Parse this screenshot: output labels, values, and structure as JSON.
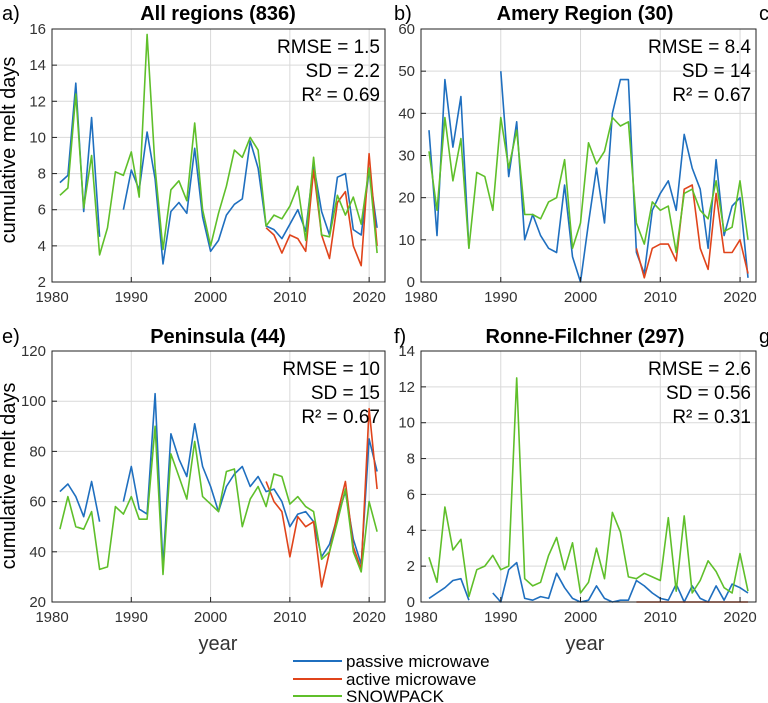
{
  "colors": {
    "passive": "#1f6fbf",
    "active": "#e0441b",
    "snowpack": "#5fbf2a",
    "axis": "#222222",
    "grid": "#d9d9d9"
  },
  "legend": {
    "entries": [
      "passive microwave",
      "active microwave",
      "SNOWPACK"
    ]
  },
  "chart_data": [
    {
      "type": "line",
      "panel_label": "a)",
      "title": "All regions (836)",
      "ylabel": "cumulative melt days",
      "xlabel": "",
      "xlim": [
        1980,
        2022
      ],
      "ylim": [
        2,
        16
      ],
      "xticks": [
        1980,
        1990,
        2000,
        2010,
        2020
      ],
      "yticks": [
        2,
        4,
        6,
        8,
        10,
        12,
        14,
        16
      ],
      "stats": [
        "RMSE = 1.5",
        "SD = 2.2",
        "R² = 0.69"
      ],
      "series": [
        {
          "name": "passive microwave",
          "color_key": "passive",
          "x": [
            1981,
            1982,
            1983,
            1984,
            1985,
            1986,
            null,
            1989,
            1990,
            1991,
            1992,
            1993,
            1994,
            1995,
            1996,
            1997,
            1998,
            1999,
            2000,
            2001,
            2002,
            2003,
            2004,
            2005,
            2006,
            2007,
            2008,
            2009,
            2010,
            2011,
            2012,
            2013,
            2014,
            2015,
            2016,
            2017,
            2018,
            2019,
            2020,
            2021
          ],
          "values": [
            7.5,
            7.9,
            13.0,
            5.9,
            11.1,
            4.5,
            null,
            6.0,
            8.2,
            7.1,
            10.3,
            7.7,
            3.0,
            5.9,
            6.4,
            5.8,
            9.4,
            5.6,
            3.7,
            4.3,
            5.7,
            6.3,
            6.6,
            9.8,
            8.3,
            5.1,
            4.9,
            4.4,
            5.2,
            6.0,
            4.8,
            8.5,
            5.9,
            4.6,
            7.8,
            8.0,
            4.9,
            4.6,
            8.2,
            5.0
          ]
        },
        {
          "name": "active microwave",
          "color_key": "active",
          "x": [
            2007,
            2008,
            2009,
            2010,
            2011,
            2012,
            2013,
            2014,
            2015,
            2016,
            2017,
            2018,
            2019,
            2020,
            2021
          ],
          "values": [
            5.0,
            4.6,
            3.6,
            4.6,
            4.4,
            3.7,
            8.2,
            4.6,
            3.3,
            6.4,
            7.0,
            4.0,
            2.9,
            9.1,
            4.0
          ]
        },
        {
          "name": "SNOWPACK",
          "color_key": "snowpack",
          "x": [
            1981,
            1982,
            1983,
            1984,
            1985,
            1986,
            1987,
            1988,
            1989,
            1990,
            1991,
            1992,
            1993,
            1994,
            1995,
            1996,
            1997,
            1998,
            1999,
            2000,
            2001,
            2002,
            2003,
            2004,
            2005,
            2006,
            2007,
            2008,
            2009,
            2010,
            2011,
            2012,
            2013,
            2014,
            2015,
            2016,
            2017,
            2018,
            2019,
            2020,
            2021
          ],
          "values": [
            6.8,
            7.2,
            12.4,
            6.1,
            9.0,
            3.5,
            5.0,
            8.1,
            7.9,
            9.2,
            6.7,
            15.7,
            8.3,
            3.8,
            7.1,
            7.6,
            6.5,
            10.8,
            6.0,
            4.0,
            5.8,
            7.3,
            9.3,
            8.9,
            10.0,
            9.3,
            5.1,
            5.7,
            5.5,
            6.2,
            7.3,
            4.3,
            8.9,
            4.6,
            4.5,
            6.8,
            5.7,
            6.7,
            5.2,
            8.3,
            3.6
          ]
        }
      ]
    },
    {
      "type": "line",
      "panel_label": "b)",
      "title": "Amery Region (30)",
      "ylabel": "",
      "xlabel": "",
      "xlim": [
        1980,
        2022
      ],
      "ylim": [
        0,
        60
      ],
      "xticks": [
        1980,
        1990,
        2000,
        2010,
        2020
      ],
      "yticks": [
        0,
        10,
        20,
        30,
        40,
        50,
        60
      ],
      "stats": [
        "RMSE = 8.4",
        "SD = 14",
        "R² = 0.67"
      ],
      "series": [
        {
          "name": "passive microwave",
          "color_key": "passive",
          "x": [
            1981,
            1982,
            1983,
            1984,
            1985,
            1986,
            1987,
            1988,
            1989,
            1990,
            1991,
            1992,
            1993,
            1994,
            1995,
            1996,
            1997,
            1998,
            1999,
            2000,
            2001,
            2002,
            2003,
            2004,
            2005,
            2006,
            2007,
            2008,
            2009,
            2010,
            2011,
            2012,
            2013,
            2014,
            2015,
            2016,
            2017,
            2018,
            2019,
            2020,
            2021
          ],
          "values": [
            36,
            11,
            48,
            32,
            44,
            8,
            null,
            null,
            null,
            50,
            25,
            38,
            10,
            16,
            11,
            8,
            7,
            23,
            6,
            0,
            14,
            27,
            14,
            40,
            48,
            48,
            7,
            2,
            17,
            21,
            24,
            17,
            35,
            27,
            22,
            8,
            29,
            11,
            18,
            20,
            1
          ]
        },
        {
          "name": "active microwave",
          "color_key": "active",
          "x": [
            2007,
            2008,
            2009,
            2010,
            2011,
            2012,
            2013,
            2014,
            2015,
            2016,
            2017,
            2018,
            2019,
            2020,
            2021
          ],
          "values": [
            8,
            1,
            8,
            9,
            9,
            5,
            22,
            23,
            8,
            3,
            21,
            7,
            7,
            10,
            2
          ]
        },
        {
          "name": "SNOWPACK",
          "color_key": "snowpack",
          "x": [
            1981,
            1982,
            1983,
            1984,
            1985,
            1986,
            1987,
            1988,
            1989,
            1990,
            1991,
            1992,
            1993,
            1994,
            1995,
            1996,
            1997,
            1998,
            1999,
            2000,
            2001,
            2002,
            2003,
            2004,
            2005,
            2006,
            2007,
            2008,
            2009,
            2010,
            2011,
            2012,
            2013,
            2014,
            2015,
            2016,
            2017,
            2018,
            2019,
            2020,
            2021
          ],
          "values": [
            31,
            17,
            39,
            24,
            34,
            8,
            26,
            25,
            17,
            39,
            27,
            36,
            16,
            16,
            15,
            19,
            20,
            29,
            8,
            14,
            33,
            28,
            31,
            39,
            37,
            38,
            14,
            9,
            19,
            17,
            18,
            7,
            21,
            22,
            17,
            15,
            24,
            12,
            13,
            24,
            10
          ]
        }
      ]
    },
    {
      "type": "line",
      "panel_label": "e)",
      "title": "Peninsula (44)",
      "ylabel": "cumulative melt days",
      "xlabel": "year",
      "xlim": [
        1980,
        2022
      ],
      "ylim": [
        20,
        120
      ],
      "xticks": [
        1980,
        1990,
        2000,
        2010,
        2020
      ],
      "yticks": [
        20,
        40,
        60,
        80,
        100,
        120
      ],
      "stats": [
        "RMSE = 10",
        "SD = 15",
        "R² = 0.67"
      ],
      "series": [
        {
          "name": "passive microwave",
          "color_key": "passive",
          "x": [
            1981,
            1982,
            1983,
            1984,
            1985,
            1986,
            1987,
            1988,
            1989,
            1990,
            1991,
            1992,
            1993,
            1994,
            1995,
            1996,
            1997,
            1998,
            1999,
            2000,
            2001,
            2002,
            2003,
            2004,
            2005,
            2006,
            2007,
            2008,
            2009,
            2010,
            2011,
            2012,
            2013,
            2014,
            2015,
            2016,
            2017,
            2018,
            2019,
            2020,
            2021
          ],
          "values": [
            64,
            67,
            62,
            54,
            68,
            52,
            null,
            null,
            60,
            74,
            57,
            55,
            103,
            34,
            87,
            77,
            70,
            91,
            74,
            66,
            56,
            66,
            71,
            74,
            66,
            70,
            64,
            65,
            60,
            50,
            55,
            56,
            52,
            38,
            43,
            54,
            64,
            45,
            35,
            85,
            72
          ]
        },
        {
          "name": "active microwave",
          "color_key": "active",
          "x": [
            2007,
            2008,
            2009,
            2010,
            2011,
            2012,
            2013,
            2014,
            2015,
            2016,
            2017,
            2018,
            2019,
            2020,
            2021
          ],
          "values": [
            68,
            60,
            56,
            38,
            54,
            50,
            52,
            26,
            40,
            55,
            68,
            42,
            33,
            97,
            65
          ]
        },
        {
          "name": "SNOWPACK",
          "color_key": "snowpack",
          "x": [
            1981,
            1982,
            1983,
            1984,
            1985,
            1986,
            1987,
            1988,
            1989,
            1990,
            1991,
            1992,
            1993,
            1994,
            1995,
            1996,
            1997,
            1998,
            1999,
            2000,
            2001,
            2002,
            2003,
            2004,
            2005,
            2006,
            2007,
            2008,
            2009,
            2010,
            2011,
            2012,
            2013,
            2014,
            2015,
            2016,
            2017,
            2018,
            2019,
            2020,
            2021
          ],
          "values": [
            49,
            62,
            50,
            49,
            56,
            33,
            34,
            58,
            55,
            62,
            53,
            53,
            90,
            31,
            79,
            70,
            61,
            84,
            62,
            59,
            56,
            72,
            73,
            50,
            61,
            66,
            58,
            71,
            70,
            59,
            62,
            58,
            56,
            37,
            40,
            52,
            65,
            40,
            32,
            60,
            48
          ]
        }
      ]
    },
    {
      "type": "line",
      "panel_label": "f)",
      "title": "Ronne-Filchner (297)",
      "ylabel": "",
      "xlabel": "year",
      "xlim": [
        1980,
        2022
      ],
      "ylim": [
        0,
        14
      ],
      "xticks": [
        1980,
        1990,
        2000,
        2010,
        2020
      ],
      "yticks": [
        0,
        2,
        4,
        6,
        8,
        10,
        12,
        14
      ],
      "stats": [
        "RMSE = 2.6",
        "SD = 0.56",
        "R² = 0.31"
      ],
      "series": [
        {
          "name": "passive microwave",
          "color_key": "passive",
          "x": [
            1981,
            1982,
            1983,
            1984,
            1985,
            1986,
            1987,
            1988,
            1989,
            1990,
            1991,
            1992,
            1993,
            1994,
            1995,
            1996,
            1997,
            1998,
            1999,
            2000,
            2001,
            2002,
            2003,
            2004,
            2005,
            2006,
            2007,
            2008,
            2009,
            2010,
            2011,
            2012,
            2013,
            2014,
            2015,
            2016,
            2017,
            2018,
            2019,
            2020,
            2021
          ],
          "values": [
            0.2,
            0.5,
            0.8,
            1.2,
            1.3,
            0.1,
            null,
            null,
            0.5,
            0.0,
            1.8,
            2.2,
            0.2,
            0.1,
            0.3,
            0.2,
            1.6,
            0.8,
            0.2,
            0.0,
            0.1,
            0.9,
            0.2,
            0.0,
            0.1,
            0.1,
            1.2,
            0.9,
            0.5,
            0.2,
            0.1,
            1.0,
            0.0,
            0.9,
            0.2,
            0.0,
            0.9,
            0.1,
            1.0,
            0.8,
            0.5
          ]
        },
        {
          "name": "active microwave",
          "color_key": "active",
          "x": [
            2007,
            2008,
            2009,
            2010,
            2011,
            2012,
            2013,
            2014,
            2015,
            2016,
            2017,
            2018,
            2019,
            2020,
            2021
          ],
          "values": [
            0.0,
            0.0,
            0.0,
            0.0,
            0.0,
            0.0,
            0.0,
            0.0,
            0.0,
            0.0,
            0.0,
            0.0,
            0.0,
            0.0,
            0.0
          ]
        },
        {
          "name": "SNOWPACK",
          "color_key": "snowpack",
          "x": [
            1981,
            1982,
            1983,
            1984,
            1985,
            1986,
            1987,
            1988,
            1989,
            1990,
            1991,
            1992,
            1993,
            1994,
            1995,
            1996,
            1997,
            1998,
            1999,
            2000,
            2001,
            2002,
            2003,
            2004,
            2005,
            2006,
            2007,
            2008,
            2009,
            2010,
            2011,
            2012,
            2013,
            2014,
            2015,
            2016,
            2017,
            2018,
            2019,
            2020,
            2021
          ],
          "values": [
            2.5,
            1.1,
            5.3,
            2.9,
            3.5,
            0.3,
            1.8,
            2.0,
            2.6,
            1.8,
            2.0,
            12.5,
            1.3,
            0.9,
            1.1,
            2.6,
            3.6,
            1.8,
            3.3,
            0.5,
            1.1,
            3.0,
            1.3,
            5.0,
            3.9,
            1.4,
            1.3,
            1.6,
            1.4,
            1.2,
            4.7,
            0.6,
            4.8,
            0.5,
            1.2,
            2.3,
            1.7,
            0.8,
            0.5,
            2.7,
            0.6
          ]
        }
      ]
    }
  ],
  "cropped_labels": {
    "c": "c",
    "g": "g"
  }
}
